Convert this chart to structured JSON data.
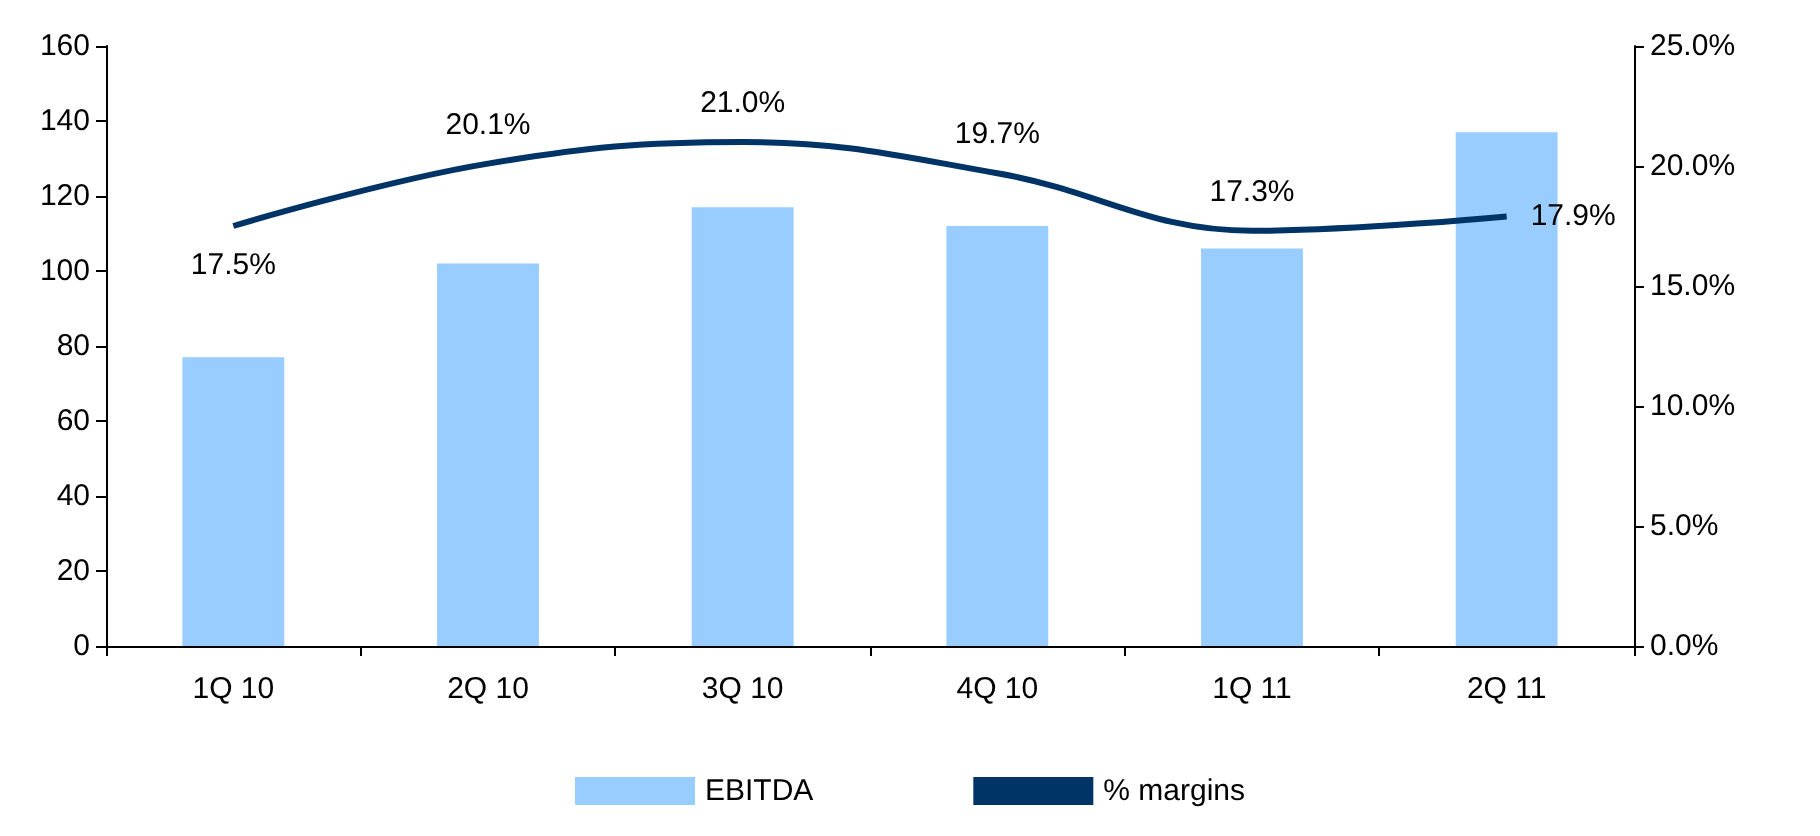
{
  "chart_data": {
    "type": "bar",
    "categories": [
      "1Q 10",
      "2Q 10",
      "3Q 10",
      "4Q 10",
      "1Q 11",
      "2Q 11"
    ],
    "series": [
      {
        "name": "EBITDA",
        "color": "#99ccff",
        "values": [
          77,
          102,
          117,
          112,
          106,
          137
        ]
      },
      {
        "name": "% margins",
        "type": "line",
        "axis": "y2",
        "color": "#003366",
        "values": [
          17.5,
          20.1,
          21.0,
          19.7,
          17.3,
          17.9
        ],
        "value_labels": [
          "17.5%",
          "20.1%",
          "21.0%",
          "19.7%",
          "17.3%",
          "17.9%"
        ]
      }
    ],
    "ylim": [
      0,
      160
    ],
    "yticks": [
      0,
      20,
      40,
      60,
      80,
      100,
      120,
      140,
      160
    ],
    "y2lim": [
      0,
      25
    ],
    "y2ticks": [
      {
        "value": 0,
        "label": "0.0%"
      },
      {
        "value": 5,
        "label": "5.0%"
      },
      {
        "value": 10,
        "label": "10.0%"
      },
      {
        "value": 15,
        "label": "15.0%"
      },
      {
        "value": 20,
        "label": "20.0%"
      },
      {
        "value": 25,
        "label": "25.0%"
      }
    ],
    "legend": "bottom",
    "marker": "none",
    "grid": false
  }
}
